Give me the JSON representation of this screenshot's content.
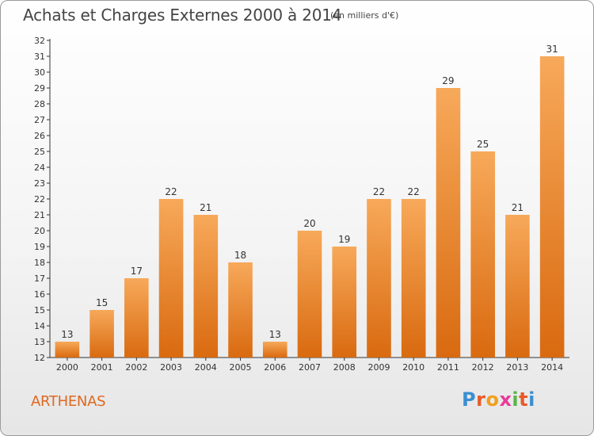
{
  "title": "Achats et Charges Externes 2000 à 2014",
  "subtitle": "(en milliers d'€)",
  "commune": "ARTHENAS",
  "logo": {
    "letters": [
      "P",
      "r",
      "o",
      "x",
      "i",
      "t",
      "i"
    ],
    "colors": [
      "#3a8fd0",
      "#e65a2a",
      "#f0a020",
      "#e83a9a",
      "#58b548",
      "#e65a2a",
      "#3a8fd0"
    ]
  },
  "colors": {
    "bar_top": "#f7a95a",
    "bar_bottom": "#d96a10",
    "title": "#444444",
    "commune": "#e06820"
  },
  "chart_data": {
    "type": "bar",
    "title": "Achats et Charges Externes 2000 à 2014",
    "subtitle": "(en milliers d'€)",
    "categories": [
      "2000",
      "2001",
      "2002",
      "2003",
      "2004",
      "2005",
      "2006",
      "2007",
      "2008",
      "2009",
      "2010",
      "2011",
      "2012",
      "2013",
      "2014"
    ],
    "values": [
      13,
      15,
      17,
      22,
      21,
      18,
      13,
      20,
      19,
      22,
      22,
      29,
      25,
      21,
      31
    ],
    "ylim": [
      12,
      32
    ],
    "yticks": [
      12,
      13,
      14,
      15,
      16,
      17,
      18,
      19,
      20,
      21,
      22,
      23,
      24,
      25,
      26,
      27,
      28,
      29,
      30,
      31,
      32
    ],
    "grid": false,
    "legend": "none"
  }
}
